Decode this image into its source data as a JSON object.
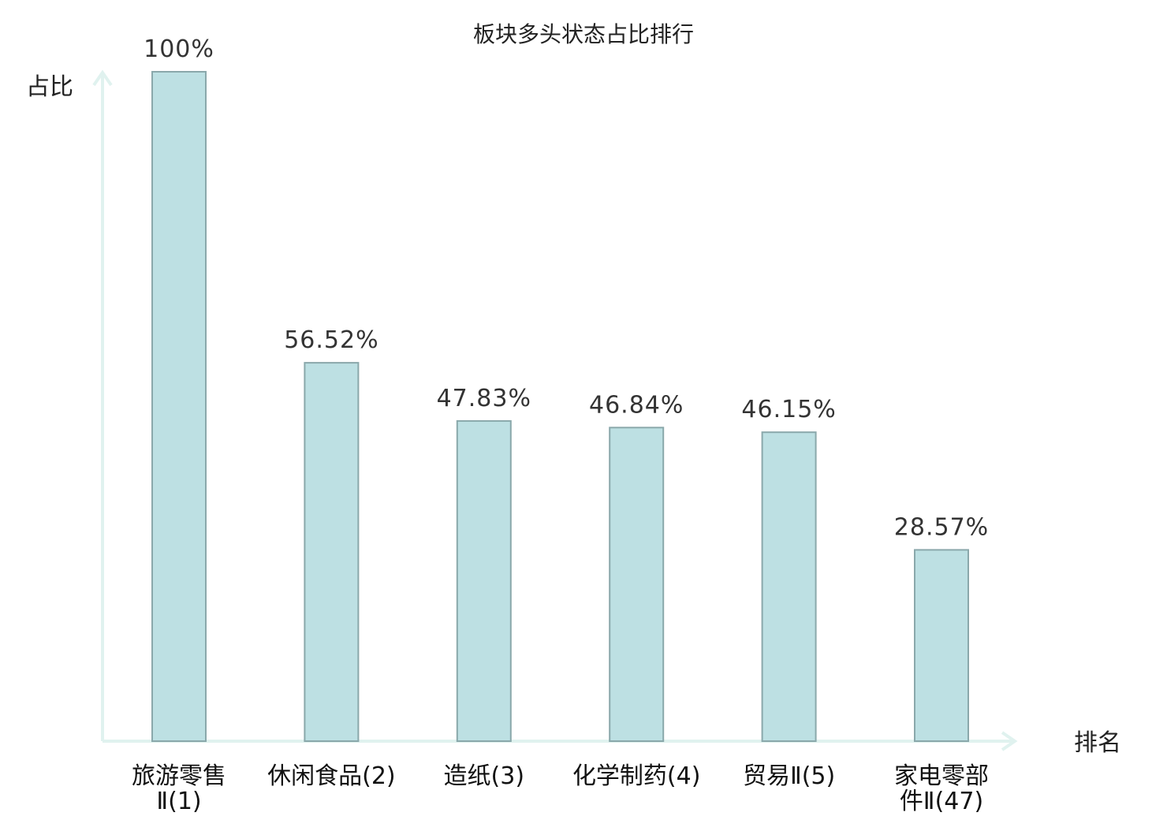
{
  "chart_data": {
    "type": "bar",
    "title": "板块多头状态占比排行",
    "ylabel": "占比",
    "xlabel": "排名",
    "ylim": [
      0,
      100
    ],
    "categories": [
      [
        "旅游零售",
        "Ⅱ(1)"
      ],
      [
        "休闲食品(2)"
      ],
      [
        "造纸(3)"
      ],
      [
        "化学制药(4)"
      ],
      [
        "贸易Ⅱ(5)"
      ],
      [
        "家电零部",
        "件Ⅱ(47)"
      ]
    ],
    "values": [
      100,
      56.52,
      47.83,
      46.84,
      46.15,
      28.57
    ],
    "value_labels": [
      "100%",
      "56.52%",
      "47.83%",
      "46.84%",
      "46.15%",
      "28.57%"
    ],
    "highlight_index": 5,
    "grid": false
  },
  "colors": {
    "bar_fill": "#bde0e3",
    "bar_stroke": "#8aa8ab",
    "axis": "#e0f2ef",
    "highlight_label": "#e01b1b",
    "label": "#111111"
  }
}
